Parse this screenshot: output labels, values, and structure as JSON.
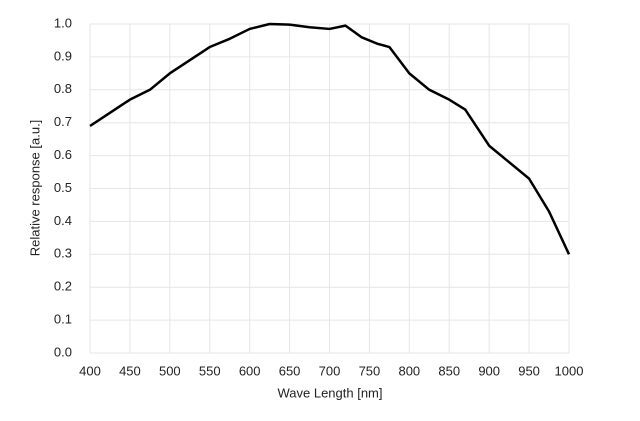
{
  "chart_data": {
    "type": "line",
    "x_label": "Wave Length [nm]",
    "y_label": "Relative response [a.u.]",
    "x": [
      400,
      425,
      450,
      475,
      500,
      525,
      550,
      575,
      600,
      625,
      650,
      675,
      700,
      720,
      740,
      760,
      775,
      800,
      825,
      850,
      870,
      900,
      925,
      950,
      975,
      1000
    ],
    "series": [
      {
        "color": "#000000",
        "values": [
          0.69,
          0.73,
          0.77,
          0.8,
          0.85,
          0.89,
          0.93,
          0.955,
          0.985,
          1.0,
          0.998,
          0.99,
          0.985,
          0.995,
          0.96,
          0.94,
          0.93,
          0.85,
          0.8,
          0.77,
          0.74,
          0.63,
          0.58,
          0.53,
          0.43,
          0.3
        ]
      }
    ],
    "xlim": [
      400,
      1000
    ],
    "xticks": [
      400,
      450,
      500,
      550,
      600,
      650,
      700,
      750,
      800,
      850,
      900,
      950,
      1000
    ],
    "ylim": [
      0,
      1
    ],
    "yticks": [
      {
        "value": 0,
        "label": "0.0"
      },
      0.1,
      0.2,
      0.3,
      0.4,
      0.5,
      0.6,
      0.7,
      0.8,
      0.9,
      {
        "value": 1,
        "label": "1.0"
      }
    ],
    "grid": true
  }
}
